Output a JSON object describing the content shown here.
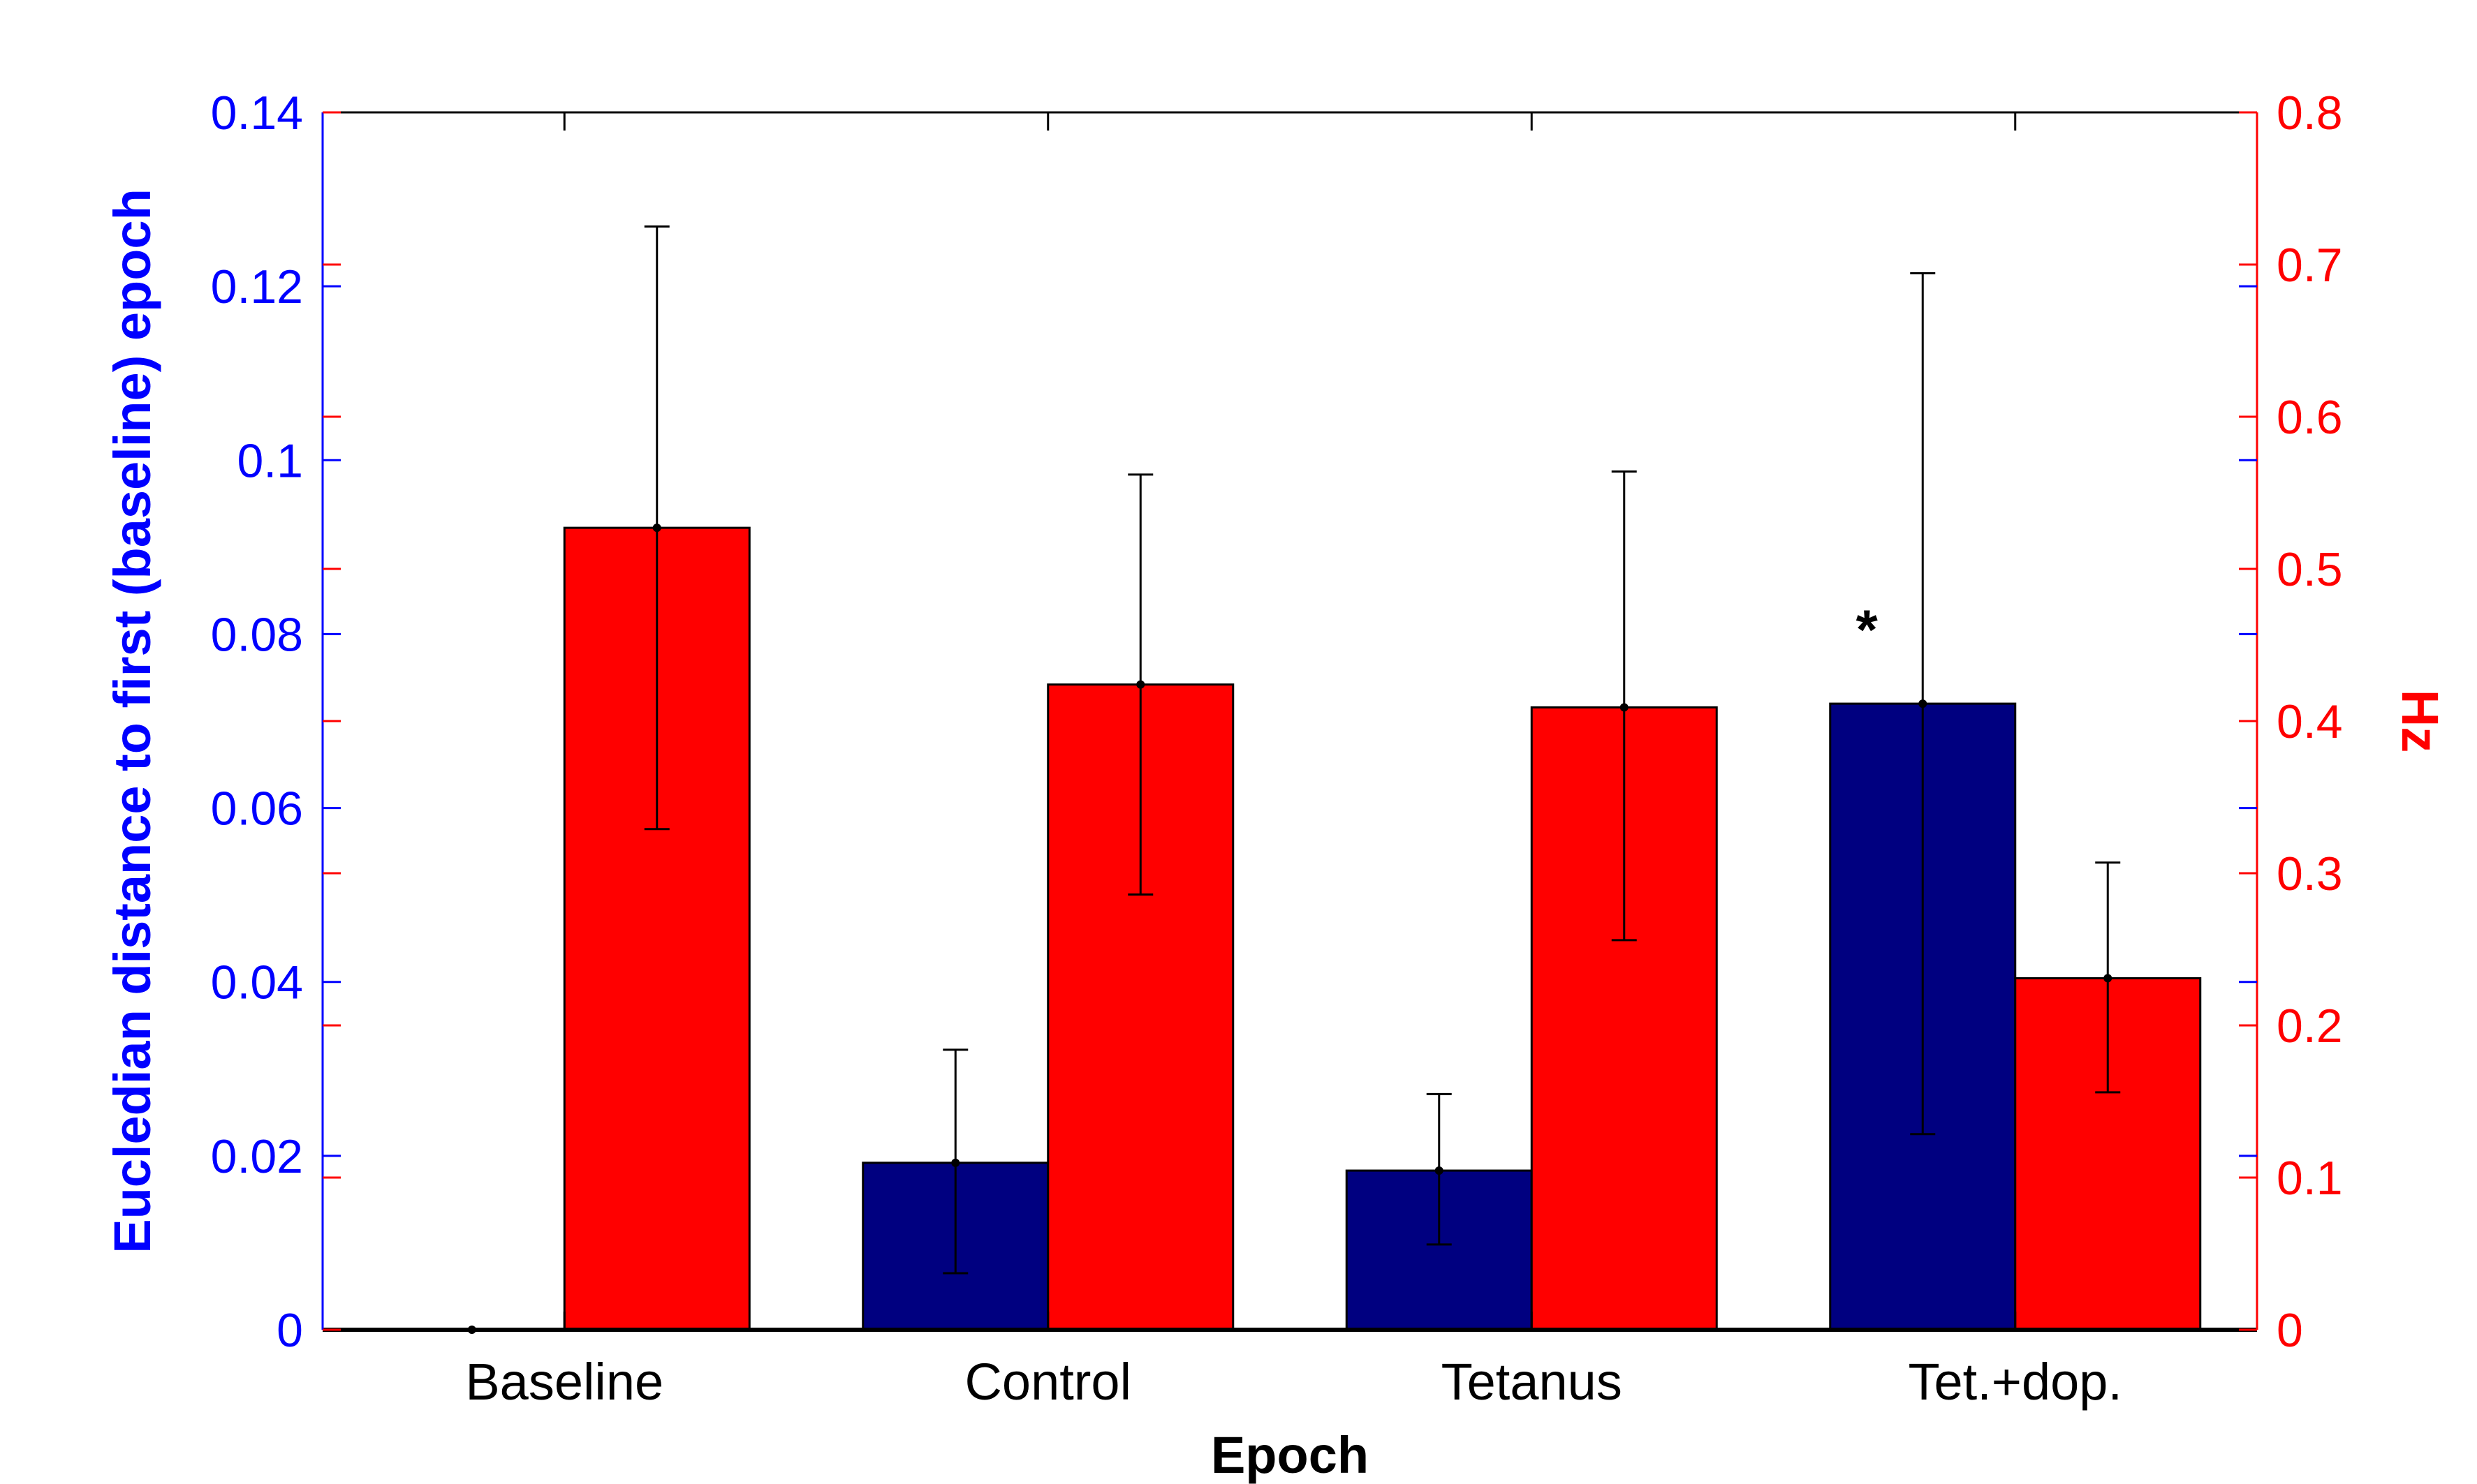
{
  "chart_data": {
    "type": "bar",
    "categories": [
      "Baseline",
      "Control",
      "Tetanus",
      "Tet.+dop."
    ],
    "xlabel": "Epoch",
    "ylabel_left": "Eucledian distance to first (baseline) epoch",
    "ylabel_right": "Hz",
    "ylim_left": [
      0,
      0.14
    ],
    "ylim_right": [
      0,
      0.8
    ],
    "yticks_left": [
      "0",
      "0.02",
      "0.04",
      "0.06",
      "0.08",
      "0.1",
      "0.12",
      "0.14"
    ],
    "yticks_right": [
      "0",
      "0.1",
      "0.2",
      "0.3",
      "0.4",
      "0.5",
      "0.6",
      "0.7",
      "0.8"
    ],
    "grid": false,
    "series": [
      {
        "axis": "left",
        "color": "#000080",
        "values": [
          0,
          0.0192,
          0.0183,
          0.072
        ],
        "err_low": [
          0,
          0.0065,
          0.0098,
          0.0225
        ],
        "err_high": [
          0,
          0.0322,
          0.0271,
          0.1215
        ]
      },
      {
        "axis": "right",
        "color": "#ff0000",
        "values": [
          0.527,
          0.424,
          0.409,
          0.231
        ],
        "err_low": [
          0.329,
          0.286,
          0.256,
          0.156
        ],
        "err_high": [
          0.725,
          0.562,
          0.564,
          0.307
        ]
      }
    ],
    "annotations": [
      {
        "text": "*",
        "category": 3,
        "series": 0,
        "value": 0.0815
      }
    ],
    "colors": {
      "left_axis": "#0000ff",
      "right_axis": "#ff0000",
      "frame": "#000000"
    }
  }
}
